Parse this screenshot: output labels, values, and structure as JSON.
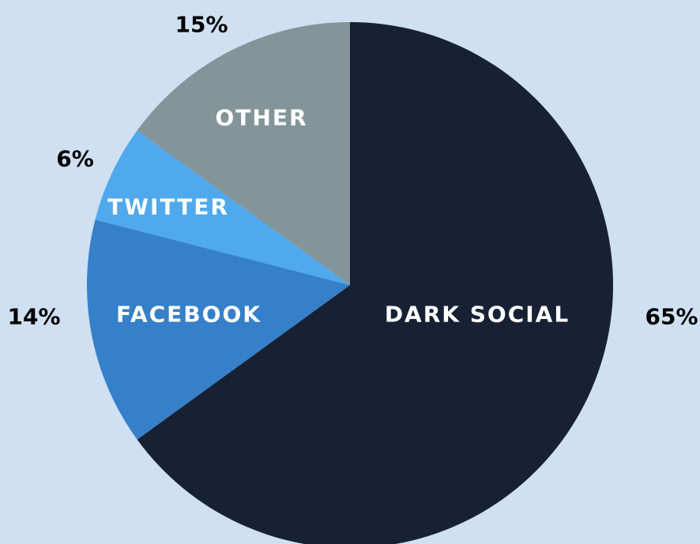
{
  "chart_data": {
    "type": "pie",
    "start": "top",
    "direction": "clockwise",
    "slices": [
      {
        "label": "DARK SOCIAL",
        "value": 65,
        "percent_label": "65%",
        "color": "#182134"
      },
      {
        "label": "FACEBOOK",
        "value": 14,
        "percent_label": "14%",
        "color": "#3580c8"
      },
      {
        "label": "TWITTER",
        "value": 6,
        "percent_label": "6%",
        "color": "#4fa9ec"
      },
      {
        "label": "OTHER",
        "value": 15,
        "percent_label": "15%",
        "color": "#839599"
      }
    ],
    "background": "#cfe0f2"
  }
}
